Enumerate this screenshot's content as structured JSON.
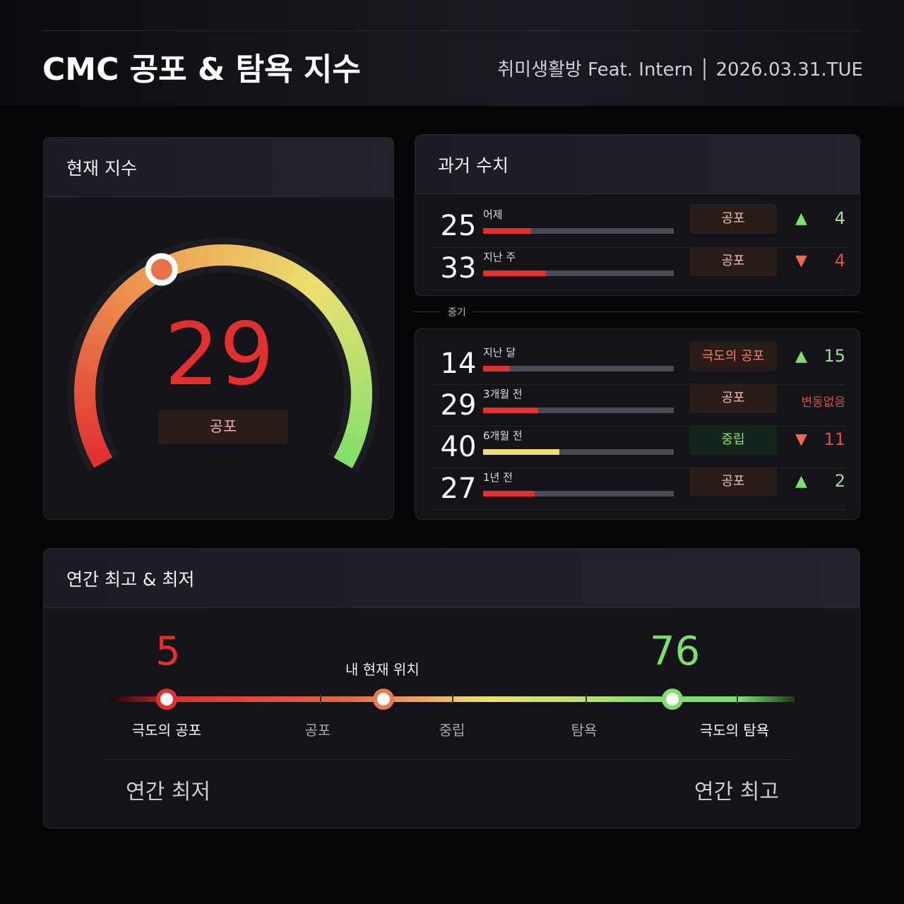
{
  "header": {
    "title": "CMC 공포 & 탐욕 지수",
    "subtitle": "취미생활방 Feat. Intern │ 2026.03.31.TUE"
  },
  "current": {
    "title": "현재 지수",
    "value": 29,
    "label": "공포"
  },
  "history": {
    "title": "과거 수치",
    "divider_label": "중기",
    "short": [
      {
        "value": "25",
        "period": "어제",
        "label": "공포",
        "direction": "up",
        "change": "4",
        "bar_color": "#e03030"
      },
      {
        "value": "33",
        "period": "지난 주",
        "label": "공포",
        "direction": "down",
        "change": "4",
        "bar_color": "#e03030"
      }
    ],
    "mid": [
      {
        "value": "14",
        "period": "지난 달",
        "label": "극도의 공포",
        "direction": "up",
        "change": "15",
        "bar_color": "#e03030"
      },
      {
        "value": "29",
        "period": "3개월 전",
        "label": "공포",
        "direction": "none",
        "change": "변동없음",
        "bar_color": "#e03030"
      },
      {
        "value": "40",
        "period": "6개월 전",
        "label": "중립",
        "direction": "down",
        "change": "11",
        "bar_color": "#ece070"
      },
      {
        "value": "27",
        "period": "1년 전",
        "label": "공포",
        "direction": "up",
        "change": "2",
        "bar_color": "#e03030"
      }
    ]
  },
  "yearly": {
    "title": "연간 최고 & 최저",
    "low": "5",
    "high": "76",
    "current_label": "내 현재 위치",
    "current": 29,
    "scale": [
      "극도의 공포",
      "공포",
      "중립",
      "탐욕",
      "극도의 탐욕"
    ],
    "low_label": "연간 최저",
    "high_label": "연간 최고"
  },
  "colors": {
    "fear": "#e03030",
    "greed": "#7ee06a",
    "neutral": "#ece070"
  }
}
